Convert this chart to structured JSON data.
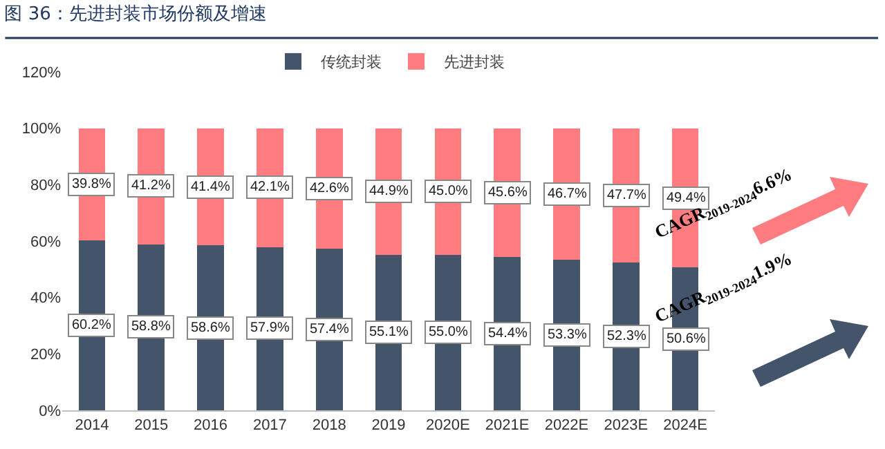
{
  "chart_data": {
    "type": "bar",
    "title": "图 36：先进封装市场份额及增速",
    "categories": [
      "2014",
      "2015",
      "2016",
      "2017",
      "2018",
      "2019",
      "2020E",
      "2021E",
      "2022E",
      "2023E",
      "2024E"
    ],
    "stacked": true,
    "legend": "top",
    "grid": false,
    "ylim": [
      0,
      120
    ],
    "yticks": [
      {
        "value": 0,
        "label": "0%"
      },
      {
        "value": 20,
        "label": "20%"
      },
      {
        "value": 40,
        "label": "40%"
      },
      {
        "value": 60,
        "label": "60%"
      },
      {
        "value": 80,
        "label": "80%"
      },
      {
        "value": 100,
        "label": "100%"
      },
      {
        "value": 120,
        "label": "120%"
      }
    ],
    "series": [
      {
        "name": "传统封装",
        "color": "#44546a",
        "values": [
          60.2,
          58.8,
          58.6,
          57.9,
          57.4,
          55.1,
          55.0,
          54.4,
          53.3,
          52.3,
          50.6
        ],
        "value_labels": [
          "60.2%",
          "58.8%",
          "58.6%",
          "57.9%",
          "57.4%",
          "55.1%",
          "55.0%",
          "54.4%",
          "53.3%",
          "52.3%",
          "50.6%"
        ]
      },
      {
        "name": "先进封装",
        "color": "#ff7c80",
        "values": [
          39.8,
          41.2,
          41.4,
          42.1,
          42.6,
          44.9,
          45.0,
          45.6,
          46.7,
          47.7,
          49.4
        ],
        "value_labels": [
          "39.8%",
          "41.2%",
          "41.4%",
          "42.1%",
          "42.6%",
          "44.9%",
          "45.0%",
          "45.6%",
          "46.7%",
          "47.7%",
          "49.4%"
        ]
      }
    ],
    "annotations": [
      "CAGR$_{2019-2024}$6.6%",
      "CAGR$_{2019-2024}$1.9%"
    ]
  }
}
